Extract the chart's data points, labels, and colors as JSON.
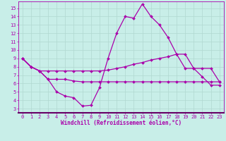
{
  "background_color": "#c8eee8",
  "grid_color": "#b0d8d0",
  "line_color": "#aa00aa",
  "marker": "D",
  "markersize": 2.0,
  "linewidth": 0.9,
  "xlabel": "Windchill (Refroidissement éolien,°C)",
  "xlabel_fontsize": 5.5,
  "tick_fontsize": 5.0,
  "xlim": [
    -0.5,
    23.5
  ],
  "ylim": [
    2.5,
    15.8
  ],
  "yticks": [
    3,
    4,
    5,
    6,
    7,
    8,
    9,
    10,
    11,
    12,
    13,
    14,
    15
  ],
  "xticks": [
    0,
    1,
    2,
    3,
    4,
    5,
    6,
    7,
    8,
    9,
    10,
    11,
    12,
    13,
    14,
    15,
    16,
    17,
    18,
    19,
    20,
    21,
    22,
    23
  ],
  "line1_x": [
    0,
    1,
    2,
    3,
    4,
    5,
    6,
    7,
    8,
    9,
    10,
    11,
    12,
    13,
    14,
    15,
    16,
    17,
    18,
    19,
    20,
    21,
    22,
    23
  ],
  "line1_y": [
    9.0,
    8.0,
    7.5,
    6.5,
    5.0,
    4.5,
    4.3,
    3.3,
    3.4,
    5.5,
    9.0,
    12.0,
    14.0,
    13.8,
    15.5,
    14.0,
    13.0,
    11.5,
    9.5,
    7.8,
    7.8,
    6.8,
    5.8,
    5.8
  ],
  "line2_x": [
    0,
    1,
    2,
    3,
    4,
    5,
    6,
    7,
    8,
    9,
    10,
    11,
    12,
    13,
    14,
    15,
    16,
    17,
    18,
    19,
    20,
    21,
    22,
    23
  ],
  "line2_y": [
    9.0,
    8.0,
    7.5,
    7.5,
    7.5,
    7.5,
    7.5,
    7.5,
    7.5,
    7.5,
    7.6,
    7.8,
    8.0,
    8.3,
    8.5,
    8.8,
    9.0,
    9.2,
    9.5,
    9.5,
    7.8,
    7.8,
    7.8,
    6.2
  ],
  "line3_x": [
    0,
    1,
    2,
    3,
    4,
    5,
    6,
    7,
    8,
    9,
    10,
    11,
    12,
    13,
    14,
    15,
    16,
    17,
    18,
    19,
    20,
    21,
    22,
    23
  ],
  "line3_y": [
    9.0,
    8.0,
    7.5,
    6.5,
    6.5,
    6.5,
    6.3,
    6.2,
    6.2,
    6.2,
    6.2,
    6.2,
    6.2,
    6.2,
    6.2,
    6.2,
    6.2,
    6.2,
    6.2,
    6.2,
    6.2,
    6.2,
    6.2,
    6.2
  ]
}
